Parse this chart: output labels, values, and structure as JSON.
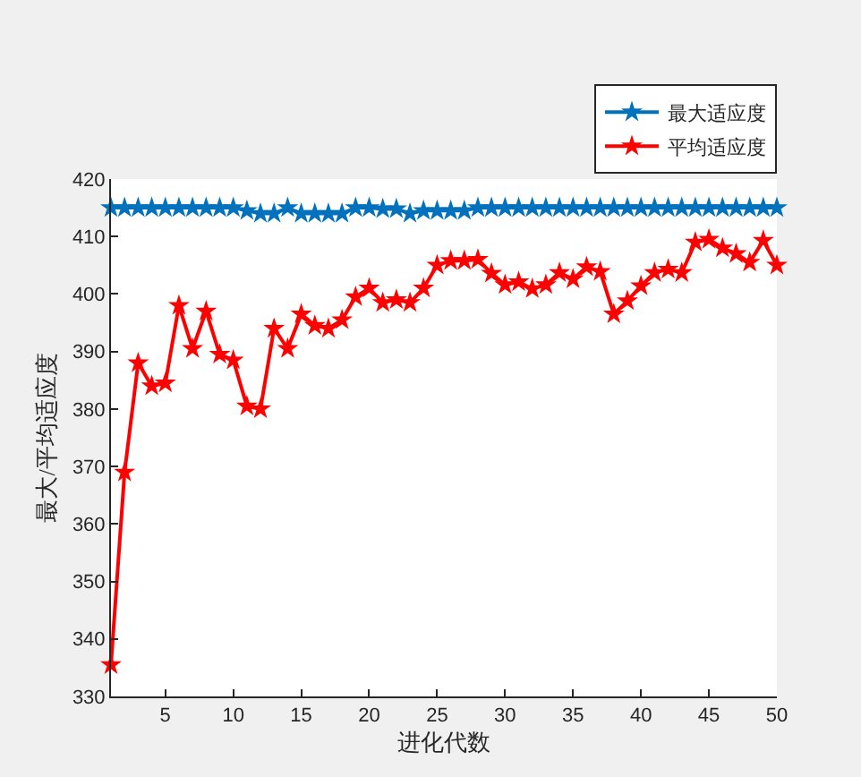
{
  "chart_data": {
    "type": "line",
    "xlabel": "进化代数",
    "ylabel": "最大/平均适应度",
    "x": [
      1,
      2,
      3,
      4,
      5,
      6,
      7,
      8,
      9,
      10,
      11,
      12,
      13,
      14,
      15,
      16,
      17,
      18,
      19,
      20,
      21,
      22,
      23,
      24,
      25,
      26,
      27,
      28,
      29,
      30,
      31,
      32,
      33,
      34,
      35,
      36,
      37,
      38,
      39,
      40,
      41,
      42,
      43,
      44,
      45,
      46,
      47,
      48,
      49,
      50
    ],
    "series": [
      {
        "name": "最大适应度",
        "color": "#0072bd",
        "values": [
          415,
          415,
          415,
          415,
          415,
          415,
          415,
          415,
          415,
          415,
          414.5,
          414,
          414,
          415,
          414,
          414,
          414,
          414,
          415,
          415,
          414.8,
          414.8,
          414,
          414.5,
          414.5,
          414.5,
          414.5,
          415,
          415,
          415,
          415,
          415,
          415,
          415,
          415,
          415,
          415,
          415,
          415,
          415,
          415,
          415,
          415,
          415,
          415,
          415,
          415,
          415,
          415,
          415
        ]
      },
      {
        "name": "平均适应度",
        "color": "#ff0000",
        "values": [
          335.5,
          369,
          388,
          384,
          384.5,
          398,
          390.5,
          397,
          389.5,
          388.5,
          380.5,
          380,
          394,
          390.5,
          396.5,
          394.5,
          394,
          395.5,
          399.5,
          401,
          398.5,
          399,
          398.5,
          401,
          405,
          405.8,
          405.8,
          406,
          403.6,
          401.6,
          402.1,
          400.9,
          401.6,
          403.7,
          402.6,
          404.7,
          403.9,
          396.5,
          398.8,
          401.4,
          403.7,
          404.3,
          403.7,
          409,
          409.5,
          408,
          407,
          405.5,
          409.3,
          405
        ]
      }
    ],
    "xlim": [
      1,
      50
    ],
    "xticks": [
      5,
      10,
      15,
      20,
      25,
      30,
      35,
      40,
      45,
      50
    ],
    "ylim": [
      330,
      420
    ],
    "yticks": [
      330,
      340,
      350,
      360,
      370,
      380,
      390,
      400,
      410,
      420
    ],
    "grid": false,
    "legend": "top right",
    "marker": "star",
    "line_style": "solid"
  }
}
